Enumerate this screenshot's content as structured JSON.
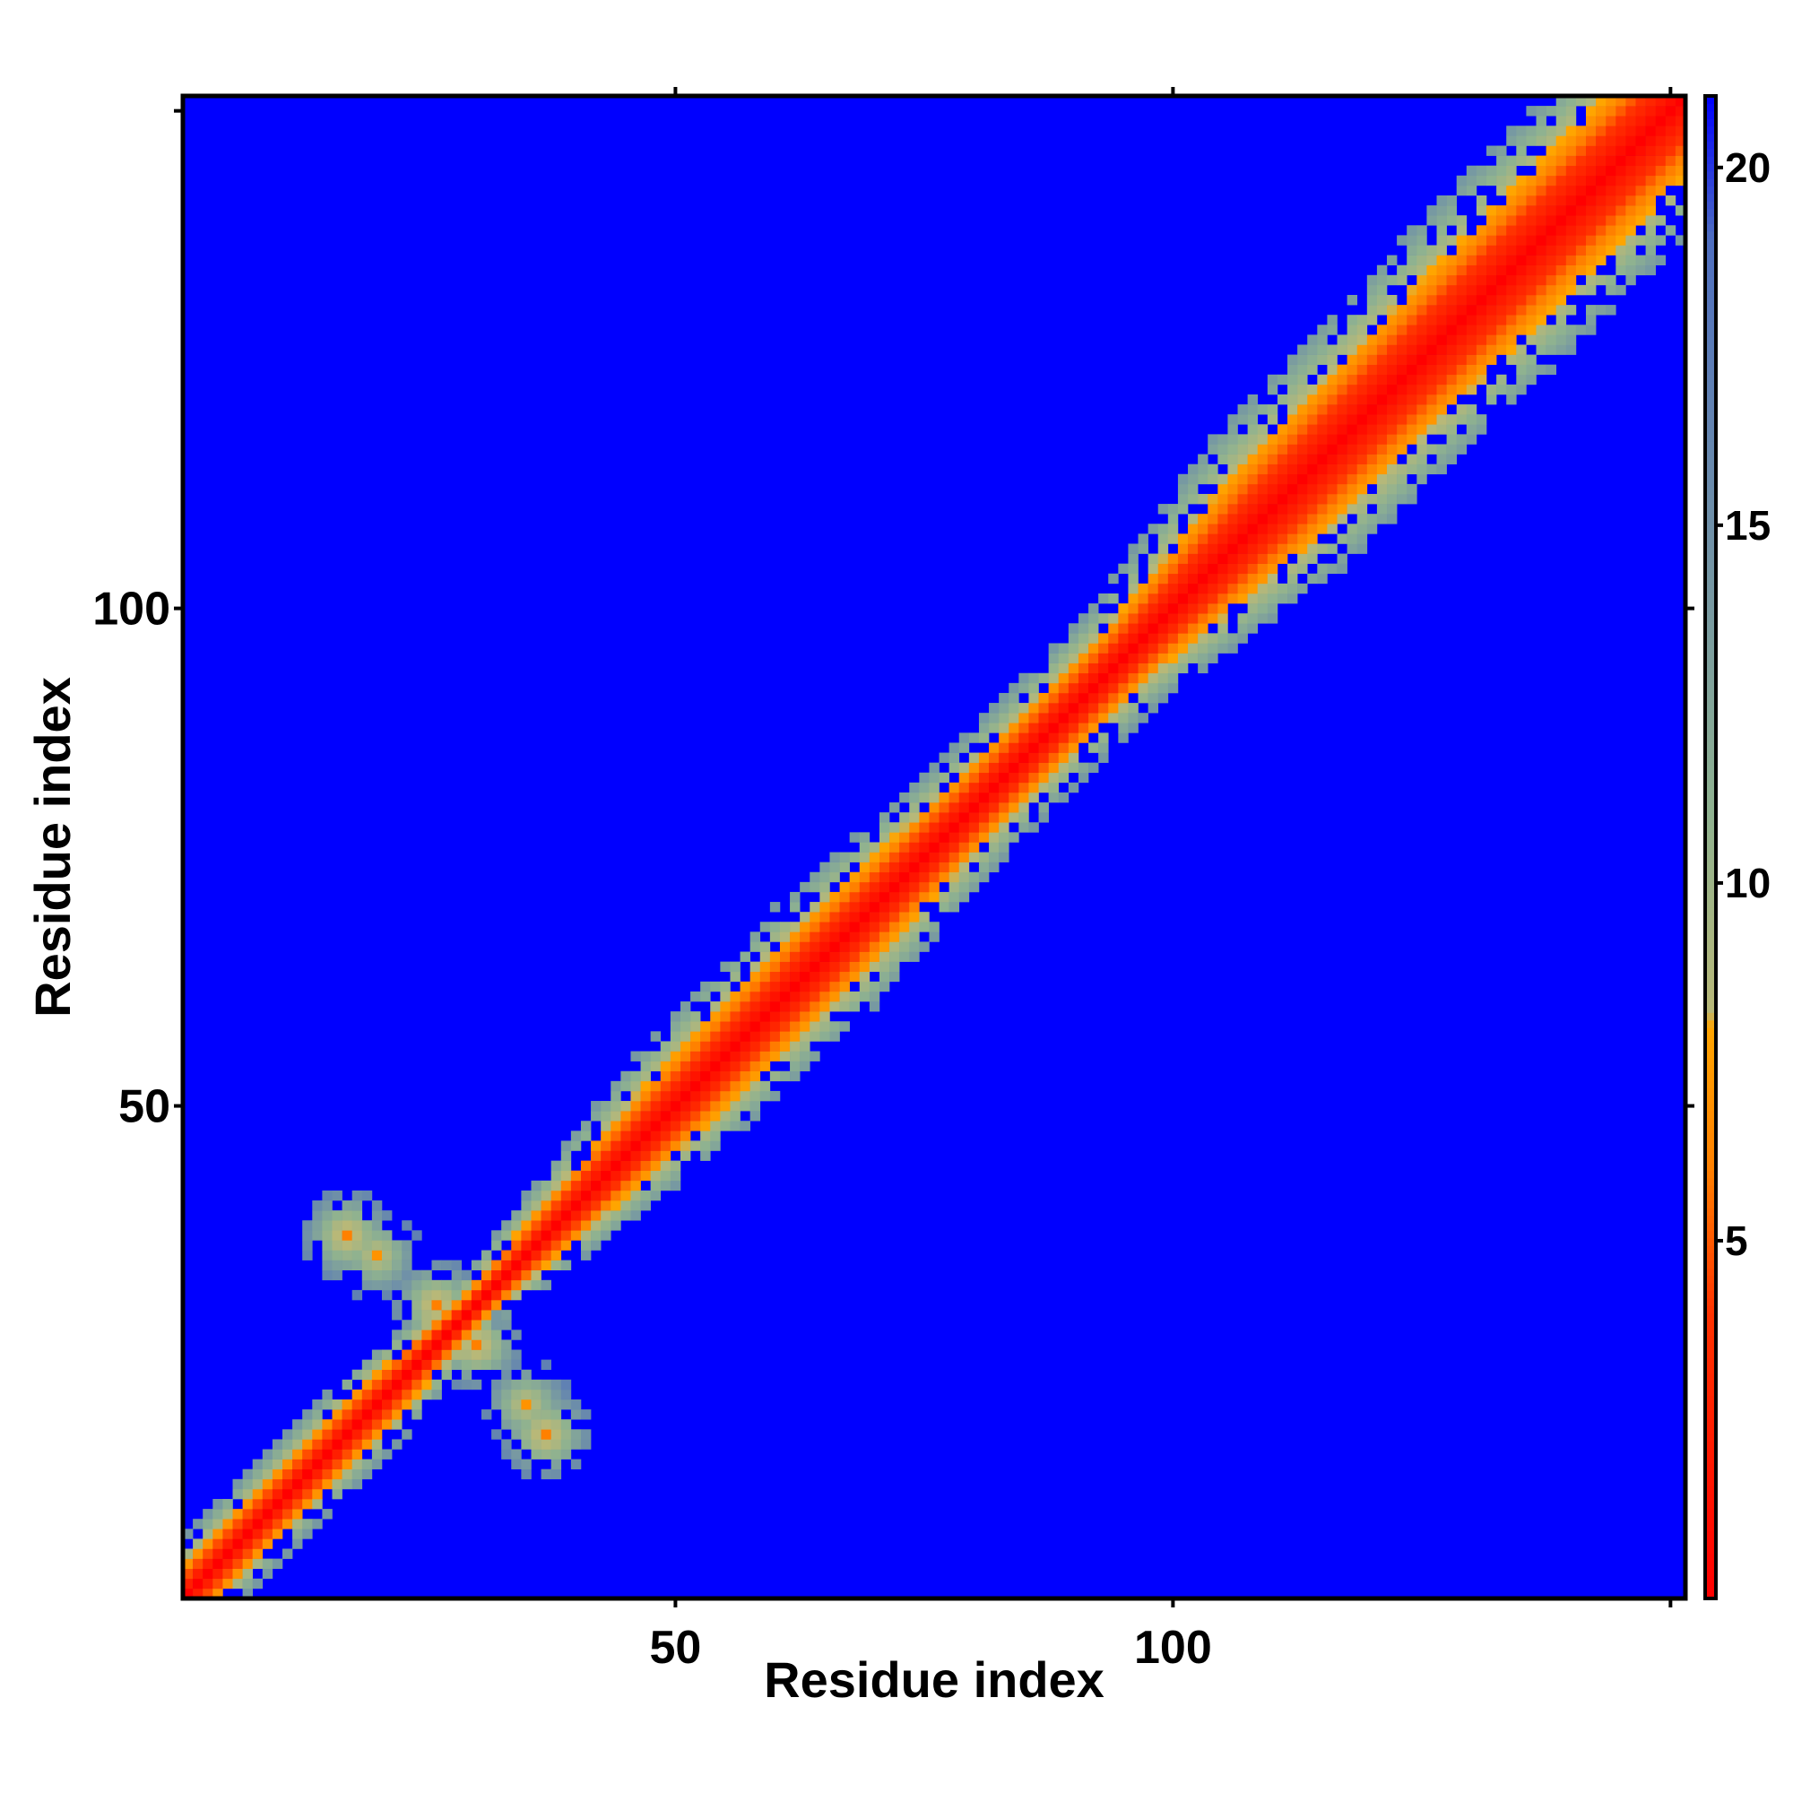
{
  "chart_data": {
    "type": "heatmap",
    "title": "",
    "xlabel": "Residue index",
    "ylabel": "Residue index",
    "xlim": [
      1,
      151
    ],
    "ylim": [
      1,
      151
    ],
    "x_ticks": [
      50,
      100
    ],
    "y_ticks": [
      50,
      100
    ],
    "colorbar": {
      "ticks": [
        5,
        10,
        15,
        20
      ],
      "range": [
        0,
        21
      ],
      "colors": [
        {
          "value": 0,
          "color": "#ff0000"
        },
        {
          "value": 4,
          "color": "#ff3300"
        },
        {
          "value": 6,
          "color": "#ff8000"
        },
        {
          "value": 8,
          "color": "#ffa500"
        },
        {
          "value": 8.2,
          "color": "#b8b878"
        },
        {
          "value": 11,
          "color": "#8fb290"
        },
        {
          "value": 15,
          "color": "#6f90a8"
        },
        {
          "value": 19,
          "color": "#4f6fc0"
        },
        {
          "value": 21,
          "color": "#0000ff"
        }
      ]
    },
    "background_color": "#0000ff",
    "description_of_values": "distance-like contact values; near-diagonal cells small, off-diagonal cells saturate at max",
    "features": {
      "diagonal_bandwidth": [
        {
          "residue": 1,
          "width": 6
        },
        {
          "residue": 20,
          "width": 6
        },
        {
          "residue": 30,
          "width": 4
        },
        {
          "residue": 50,
          "width": 9
        },
        {
          "residue": 65,
          "width": 10
        },
        {
          "residue": 80,
          "width": 8
        },
        {
          "residue": 95,
          "width": 8
        },
        {
          "residue": 110,
          "width": 13
        },
        {
          "residue": 130,
          "width": 14
        },
        {
          "residue": 151,
          "width": 14
        }
      ],
      "off_diagonal_contacts": [
        {
          "i": 17,
          "j": 37,
          "value": 6
        },
        {
          "i": 20,
          "j": 35,
          "value": 7
        },
        {
          "i": 26,
          "j": 30,
          "value": 6
        }
      ]
    }
  }
}
